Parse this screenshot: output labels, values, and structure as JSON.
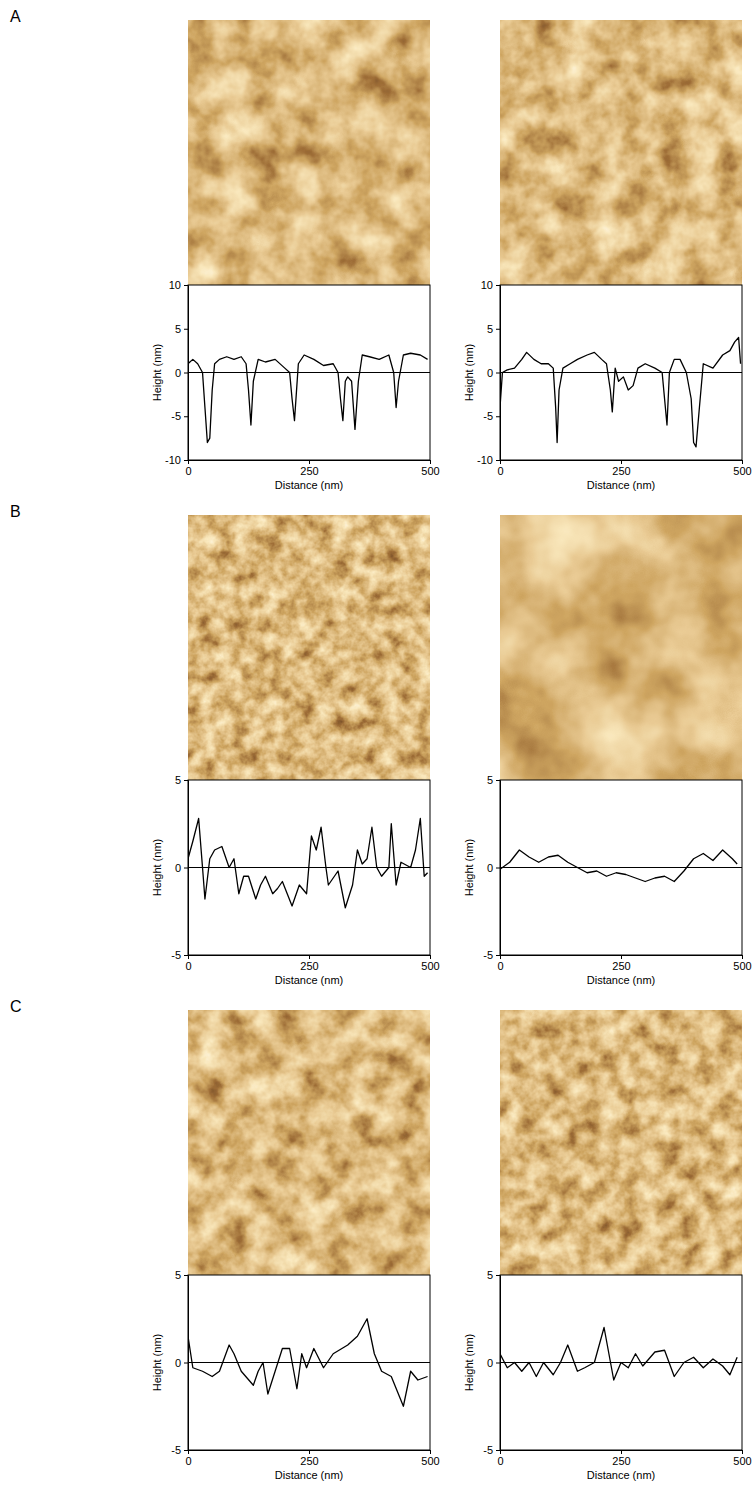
{
  "chart_data": [
    {
      "type": "line",
      "title": "A",
      "x_label": "Distance (nm)",
      "y_label": "Height (nm)",
      "x": [
        0,
        10,
        20,
        30,
        35,
        40,
        45,
        50,
        55,
        65,
        80,
        95,
        110,
        120,
        125,
        130,
        135,
        145,
        160,
        180,
        200,
        210,
        215,
        220,
        228,
        240,
        260,
        280,
        300,
        310,
        315,
        320,
        325,
        330,
        338,
        345,
        352,
        360,
        375,
        395,
        415,
        425,
        430,
        435,
        445,
        460,
        480,
        495
      ],
      "values": [
        1,
        1.5,
        1,
        0,
        -4,
        -8,
        -7.5,
        -2,
        1,
        1.5,
        1.8,
        1.5,
        1.8,
        1,
        -2,
        -6,
        -1,
        1.5,
        1.2,
        1.5,
        0.5,
        0,
        -3,
        -5.5,
        1,
        2,
        1.5,
        0.8,
        1,
        0,
        -3,
        -5.5,
        -1,
        -0.5,
        -1,
        -6.5,
        -1,
        2,
        1.8,
        1.5,
        2,
        0,
        -4,
        -1,
        2,
        2.2,
        2,
        1.5
      ],
      "color": "#000000",
      "baseline": 0,
      "xlim": [
        0,
        500
      ],
      "xticks": [
        0,
        250,
        500
      ],
      "ylim": [
        -10,
        10
      ],
      "yticks": [
        -10,
        -5,
        0,
        5,
        10
      ]
    },
    {
      "type": "line",
      "x_label": "Distance (nm)",
      "y_label": "Height (nm)",
      "x": [
        0,
        5,
        15,
        30,
        45,
        55,
        70,
        85,
        100,
        110,
        115,
        118,
        122,
        130,
        145,
        160,
        180,
        195,
        210,
        220,
        228,
        232,
        238,
        245,
        255,
        265,
        275,
        285,
        300,
        320,
        335,
        340,
        345,
        350,
        360,
        372,
        385,
        395,
        400,
        405,
        412,
        420,
        440,
        460,
        475,
        485,
        493,
        497
      ],
      "values": [
        -4,
        0,
        0.3,
        0.5,
        1.5,
        2.3,
        1.5,
        1,
        1,
        0.5,
        -4,
        -8,
        -2,
        0.5,
        1,
        1.5,
        2,
        2.3,
        1.5,
        1,
        -2,
        -4.5,
        0.5,
        -1,
        -0.5,
        -2,
        -1.5,
        0.5,
        1,
        0.5,
        0,
        -3,
        -6,
        0,
        1.5,
        1.5,
        0,
        -3,
        -8,
        -8.5,
        -4,
        1,
        0.5,
        2,
        2.5,
        3.5,
        4,
        1
      ],
      "color": "#000000",
      "baseline": 0,
      "xlim": [
        0,
        500
      ],
      "xticks": [
        0,
        250,
        500
      ],
      "ylim": [
        -10,
        10
      ],
      "yticks": [
        -10,
        -5,
        0,
        5,
        10
      ]
    },
    {
      "type": "line",
      "title": "B",
      "x_label": "Distance (nm)",
      "y_label": "Height (nm)",
      "x": [
        0,
        10,
        22,
        30,
        35,
        45,
        55,
        70,
        85,
        95,
        105,
        115,
        125,
        140,
        150,
        160,
        175,
        185,
        195,
        205,
        215,
        230,
        245,
        255,
        265,
        275,
        285,
        290,
        310,
        325,
        340,
        350,
        360,
        370,
        380,
        390,
        400,
        415,
        420,
        430,
        440,
        460,
        470,
        480,
        488,
        495
      ],
      "values": [
        0.5,
        1.5,
        2.8,
        0,
        -1.8,
        0.5,
        1,
        1.2,
        0,
        0.5,
        -1.5,
        -0.5,
        -0.5,
        -1.8,
        -1,
        -0.5,
        -1.5,
        -1.2,
        -0.8,
        -1.5,
        -2.2,
        -1,
        -1.5,
        1.8,
        1,
        2.3,
        0,
        -1,
        -0.2,
        -2.3,
        -1,
        1,
        0.2,
        0.5,
        2.3,
        0,
        -0.5,
        0,
        2.5,
        -1,
        0.3,
        0,
        1,
        2.8,
        -0.5,
        -0.3
      ],
      "color": "#000000",
      "baseline": 0,
      "xlim": [
        0,
        500
      ],
      "xticks": [
        0,
        250,
        500
      ],
      "ylim": [
        -5,
        5
      ],
      "yticks": [
        -5,
        0,
        5
      ]
    },
    {
      "type": "line",
      "x_label": "Distance (nm)",
      "y_label": "Height (nm)",
      "x": [
        0,
        20,
        40,
        60,
        80,
        100,
        120,
        140,
        160,
        180,
        200,
        220,
        240,
        260,
        280,
        300,
        320,
        340,
        360,
        380,
        400,
        420,
        440,
        460,
        480,
        490
      ],
      "values": [
        -0.1,
        0.3,
        1,
        0.6,
        0.3,
        0.6,
        0.7,
        0.3,
        0,
        -0.3,
        -0.2,
        -0.5,
        -0.3,
        -0.4,
        -0.6,
        -0.8,
        -0.6,
        -0.5,
        -0.8,
        -0.2,
        0.5,
        0.8,
        0.4,
        1,
        0.5,
        0.2
      ],
      "color": "#000000",
      "baseline": 0,
      "xlim": [
        0,
        500
      ],
      "xticks": [
        0,
        250,
        500
      ],
      "ylim": [
        -5,
        5
      ],
      "yticks": [
        -5,
        0,
        5
      ]
    },
    {
      "type": "line",
      "title": "C",
      "x_label": "Distance (nm)",
      "y_label": "Height (nm)",
      "x": [
        0,
        10,
        30,
        50,
        65,
        85,
        95,
        110,
        135,
        145,
        155,
        165,
        180,
        195,
        210,
        225,
        235,
        245,
        260,
        280,
        300,
        330,
        350,
        370,
        385,
        400,
        420,
        445,
        460,
        475,
        495
      ],
      "values": [
        1.5,
        -0.3,
        -0.5,
        -0.8,
        -0.5,
        1,
        0.5,
        -0.5,
        -1.3,
        -0.5,
        0,
        -1.8,
        -0.5,
        0.8,
        0.8,
        -1.5,
        0.5,
        -0.3,
        0.8,
        -0.3,
        0.5,
        1,
        1.5,
        2.5,
        0.5,
        -0.5,
        -0.8,
        -2.5,
        -0.5,
        -1,
        -0.8
      ],
      "color": "#000000",
      "baseline": 0,
      "xlim": [
        0,
        500
      ],
      "xticks": [
        0,
        250,
        500
      ],
      "ylim": [
        -5,
        5
      ],
      "yticks": [
        -5,
        0,
        5
      ]
    },
    {
      "type": "line",
      "x_label": "Distance (nm)",
      "y_label": "Height (nm)",
      "x": [
        0,
        15,
        30,
        45,
        60,
        75,
        90,
        110,
        125,
        140,
        160,
        175,
        195,
        215,
        235,
        250,
        265,
        280,
        295,
        320,
        340,
        360,
        380,
        400,
        420,
        440,
        460,
        475,
        490
      ],
      "values": [
        0.5,
        -0.3,
        0,
        -0.5,
        0,
        -0.8,
        0,
        -0.7,
        0,
        1,
        -0.5,
        -0.3,
        0,
        2,
        -1,
        0,
        -0.3,
        0.5,
        -0.2,
        0.6,
        0.7,
        -0.8,
        0,
        0.3,
        -0.3,
        0.2,
        -0.2,
        -0.7,
        0.3
      ],
      "color": "#000000",
      "baseline": 0,
      "xlim": [
        0,
        500
      ],
      "xticks": [
        0,
        250,
        500
      ],
      "ylim": [
        -5,
        5
      ],
      "yticks": [
        -5,
        0,
        5
      ]
    }
  ]
}
